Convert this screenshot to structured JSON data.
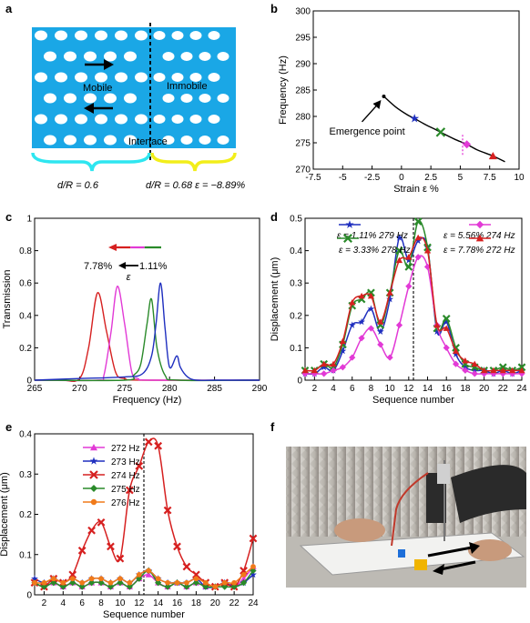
{
  "panel_letters": {
    "a": "a",
    "b": "b",
    "c": "c",
    "d": "d",
    "e": "e",
    "f": "f"
  },
  "panel_a": {
    "label_mobile": "Mobile",
    "label_immobile": "Immobile",
    "label_interface": "Interface",
    "caption_left": "d/R = 0.6",
    "caption_right": "d/R = 0.68 ε = −8.89%",
    "colors": {
      "plate": "#1aa7e6",
      "left_brace": "#2ee6f0",
      "right_brace": "#f2ee1a"
    }
  },
  "chart_data": [
    {
      "id": "b",
      "type": "line",
      "xlabel": "Strain ε %",
      "ylabel": "Frequency (Hz)",
      "xlim": [
        -7.5,
        10
      ],
      "ylim": [
        270,
        300
      ],
      "xticks": [
        -7.5,
        -5,
        -2.5,
        0,
        2.5,
        5,
        7.5,
        10
      ],
      "yticks": [
        270,
        275,
        280,
        285,
        290,
        295,
        300
      ],
      "curve_x": [
        -1.5,
        -0.5,
        0.5,
        1.11,
        2,
        3,
        3.33,
        4.5,
        5.56,
        6.5,
        7.78,
        8.8
      ],
      "curve_y": [
        283.8,
        281.8,
        280.3,
        279.6,
        278.5,
        277.4,
        277.0,
        275.7,
        274.7,
        273.6,
        272.5,
        271.4
      ],
      "markers": [
        {
          "x": -1.5,
          "y": 283.8,
          "symbol": "dot",
          "color": "#000000"
        },
        {
          "x": 1.11,
          "y": 279.6,
          "symbol": "star",
          "color": "#1f2fbf"
        },
        {
          "x": 3.33,
          "y": 277.0,
          "symbol": "x",
          "color": "#2a8a2a"
        },
        {
          "x": 5.56,
          "y": 274.7,
          "symbol": "diamond",
          "color": "#e23ad6"
        },
        {
          "x": 7.78,
          "y": 272.5,
          "symbol": "triangle",
          "color": "#d62020"
        }
      ],
      "dotted_vline_x": 5.2,
      "annotation": "Emergence point"
    },
    {
      "id": "c",
      "type": "line",
      "xlabel": "Frequency (Hz)",
      "ylabel": "Transmission",
      "xlim": [
        265,
        290
      ],
      "ylim": [
        0,
        1
      ],
      "xticks": [
        265,
        270,
        275,
        280,
        285,
        290
      ],
      "yticks": [
        0,
        0.2,
        0.4,
        0.6,
        0.8,
        1
      ],
      "arrow_label_left": "7.78%",
      "arrow_label_right": "1.11%",
      "arrow_label_eps": "ε",
      "series": [
        {
          "color": "#d62020",
          "x": [
            265,
            268,
            270,
            271,
            272,
            273,
            274,
            275,
            277,
            290
          ],
          "y": [
            0,
            0,
            0.01,
            0.2,
            0.54,
            0.3,
            0.05,
            0.01,
            0,
            0
          ]
        },
        {
          "color": "#e23ad6",
          "x": [
            265,
            272,
            272.7,
            273.5,
            274.2,
            275,
            275.8,
            276.5,
            278,
            290
          ],
          "y": [
            0,
            0,
            0.03,
            0.3,
            0.58,
            0.35,
            0.05,
            0.01,
            0,
            0
          ]
        },
        {
          "color": "#2a8a2a",
          "x": [
            265,
            275,
            276,
            276.8,
            277.5,
            278,
            278.6,
            279.5,
            281,
            290
          ],
          "y": [
            0,
            0,
            0.03,
            0.1,
            0.35,
            0.5,
            0.2,
            0.03,
            0,
            0
          ]
        },
        {
          "color": "#1f2fbf",
          "x": [
            265,
            270,
            275,
            277,
            278,
            278.5,
            279,
            279.5,
            280,
            280.8,
            281.2,
            282,
            283,
            285,
            290
          ],
          "y": [
            0,
            0.01,
            0.02,
            0.04,
            0.15,
            0.35,
            0.6,
            0.32,
            0.08,
            0.15,
            0.08,
            0.02,
            0,
            0,
            0
          ]
        }
      ]
    },
    {
      "id": "d",
      "type": "line",
      "xlabel": "Sequence number",
      "ylabel": "Displacement (μm)",
      "xlim": [
        1,
        24
      ],
      "ylim": [
        0,
        0.5
      ],
      "xticks": [
        2,
        4,
        6,
        8,
        10,
        12,
        14,
        16,
        18,
        20,
        22,
        24
      ],
      "yticks": [
        0,
        0.1,
        0.2,
        0.3,
        0.4,
        0.5
      ],
      "dotted_vline_x": 12.5,
      "series": [
        {
          "name": "ε = 1.11% 279 Hz",
          "color": "#1f2fbf",
          "symbol": "star",
          "y": [
            0.02,
            0.02,
            0.04,
            0.03,
            0.09,
            0.17,
            0.18,
            0.22,
            0.15,
            0.25,
            0.44,
            0.37,
            0.43,
            0.41,
            0.15,
            0.18,
            0.08,
            0.04,
            0.03,
            0.03,
            0.02,
            0.03,
            0.02,
            0.03
          ]
        },
        {
          "name": "ε = 3.33% 278 Hz",
          "color": "#2a8a2a",
          "symbol": "x",
          "y": [
            0.03,
            0.03,
            0.05,
            0.04,
            0.11,
            0.23,
            0.25,
            0.27,
            0.17,
            0.27,
            0.4,
            0.35,
            0.49,
            0.41,
            0.16,
            0.19,
            0.1,
            0.05,
            0.04,
            0.03,
            0.03,
            0.04,
            0.03,
            0.04
          ]
        },
        {
          "name": "ε = 5.56% 274 Hz",
          "color": "#e23ad6",
          "symbol": "diamond",
          "y": [
            0.02,
            0.02,
            0.02,
            0.03,
            0.04,
            0.07,
            0.13,
            0.16,
            0.11,
            0.07,
            0.17,
            0.29,
            0.38,
            0.35,
            0.17,
            0.1,
            0.05,
            0.03,
            0.02,
            0.02,
            0.02,
            0.02,
            0.02,
            0.02
          ]
        },
        {
          "name": "ε = 7.78% 272 Hz",
          "color": "#d62020",
          "symbol": "triangle",
          "y": [
            0.03,
            0.03,
            0.05,
            0.05,
            0.12,
            0.24,
            0.26,
            0.26,
            0.18,
            0.27,
            0.37,
            0.38,
            0.44,
            0.4,
            0.17,
            0.16,
            0.09,
            0.06,
            0.05,
            0.03,
            0.03,
            0.03,
            0.03,
            0.03
          ]
        }
      ]
    },
    {
      "id": "e",
      "type": "line",
      "xlabel": "Sequence number",
      "ylabel": "Displacement (μm)",
      "xlim": [
        1,
        24
      ],
      "ylim": [
        0,
        0.4
      ],
      "xticks": [
        2,
        4,
        6,
        8,
        10,
        12,
        14,
        16,
        18,
        20,
        22,
        24
      ],
      "yticks": [
        0,
        0.1,
        0.2,
        0.3,
        0.4
      ],
      "dotted_vline_x": 12.5,
      "series": [
        {
          "name": "272 Hz",
          "color": "#e23ad6",
          "symbol": "triangle",
          "y": [
            0.03,
            0.02,
            0.03,
            0.02,
            0.03,
            0.02,
            0.03,
            0.03,
            0.02,
            0.03,
            0.02,
            0.04,
            0.05,
            0.03,
            0.02,
            0.03,
            0.02,
            0.03,
            0.02,
            0.02,
            0.03,
            0.02,
            0.04,
            0.07
          ]
        },
        {
          "name": "273 Hz",
          "color": "#1f2fbf",
          "symbol": "star",
          "y": [
            0.04,
            0.03,
            0.04,
            0.03,
            0.04,
            0.03,
            0.04,
            0.04,
            0.03,
            0.04,
            0.03,
            0.05,
            0.06,
            0.04,
            0.03,
            0.03,
            0.03,
            0.04,
            0.02,
            0.02,
            0.03,
            0.02,
            0.03,
            0.05
          ]
        },
        {
          "name": "274 Hz",
          "color": "#d62020",
          "symbol": "x",
          "y": [
            0.03,
            0.02,
            0.04,
            0.03,
            0.05,
            0.11,
            0.16,
            0.18,
            0.12,
            0.09,
            0.26,
            0.32,
            0.38,
            0.37,
            0.21,
            0.12,
            0.07,
            0.05,
            0.03,
            0.02,
            0.03,
            0.02,
            0.06,
            0.14
          ]
        },
        {
          "name": "275 Hz",
          "color": "#2a8a2a",
          "symbol": "diamond",
          "y": [
            0.03,
            0.02,
            0.03,
            0.02,
            0.03,
            0.02,
            0.03,
            0.03,
            0.02,
            0.03,
            0.02,
            0.04,
            0.06,
            0.03,
            0.02,
            0.03,
            0.02,
            0.03,
            0.02,
            0.02,
            0.02,
            0.02,
            0.03,
            0.06
          ]
        },
        {
          "name": "276 Hz",
          "color": "#f07a1a",
          "symbol": "dot",
          "y": [
            0.03,
            0.03,
            0.04,
            0.03,
            0.04,
            0.03,
            0.04,
            0.04,
            0.03,
            0.04,
            0.03,
            0.05,
            0.06,
            0.04,
            0.03,
            0.03,
            0.03,
            0.04,
            0.03,
            0.02,
            0.03,
            0.03,
            0.05,
            0.07
          ]
        }
      ]
    }
  ]
}
